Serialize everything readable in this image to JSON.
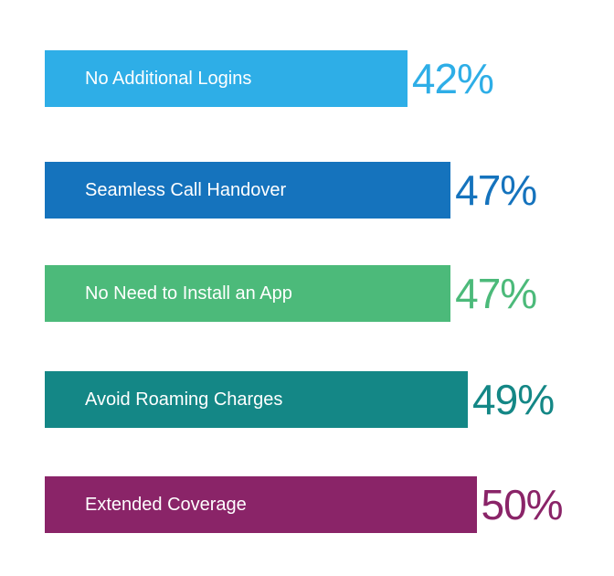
{
  "chart_data": {
    "type": "bar",
    "orientation": "horizontal",
    "categories": [
      "No Additional Logins",
      "Seamless Call Handover",
      "No Need to Install an App",
      "Avoid Roaming Charges",
      "Extended Coverage"
    ],
    "values": [
      42,
      47,
      47,
      49,
      50
    ],
    "value_labels": [
      "42%",
      "47%",
      "47%",
      "49%",
      "50%"
    ],
    "unit": "%",
    "colors": [
      "#2eaee7",
      "#1573bd",
      "#4cba7a",
      "#148786",
      "#8a2468"
    ],
    "grid": false,
    "legend": "none"
  }
}
